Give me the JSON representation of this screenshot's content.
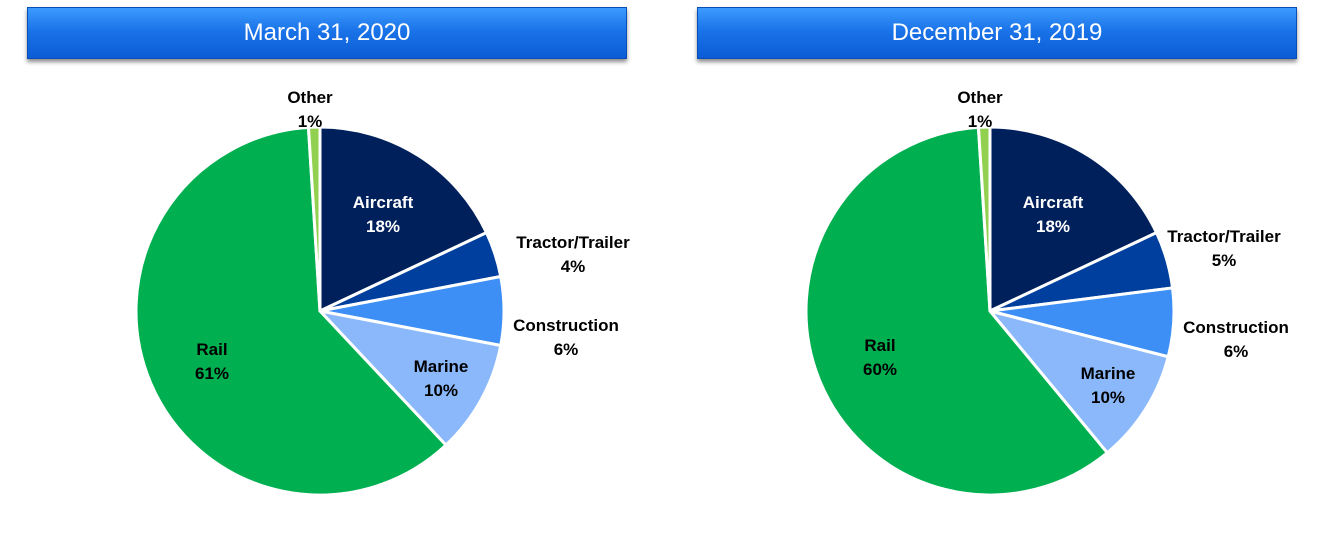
{
  "chart_data": [
    {
      "type": "pie",
      "title": "March 31, 2020",
      "slices": [
        {
          "label": "Aircraft",
          "pct_label": "18%",
          "value": 18,
          "color": "#00205b",
          "label_color": "#ffffff"
        },
        {
          "label": "Tractor/Trailer",
          "pct_label": "4%",
          "value": 4,
          "color": "#003f9e",
          "label_color": "#000000"
        },
        {
          "label": "Construction",
          "pct_label": "6%",
          "value": 6,
          "color": "#3d8ef5",
          "label_color": "#000000"
        },
        {
          "label": "Marine",
          "pct_label": "10%",
          "value": 10,
          "color": "#8ab8fb",
          "label_color": "#000000"
        },
        {
          "label": "Rail",
          "pct_label": "61%",
          "value": 61,
          "color": "#00b050",
          "label_color": "#000000"
        },
        {
          "label": "Other",
          "pct_label": "1%",
          "value": 1,
          "color": "#92d050",
          "label_color": "#000000"
        }
      ]
    },
    {
      "type": "pie",
      "title": "December 31, 2019",
      "slices": [
        {
          "label": "Aircraft",
          "pct_label": "18%",
          "value": 18,
          "color": "#00205b",
          "label_color": "#ffffff"
        },
        {
          "label": "Tractor/Trailer",
          "pct_label": "5%",
          "value": 5,
          "color": "#003f9e",
          "label_color": "#000000"
        },
        {
          "label": "Construction",
          "pct_label": "6%",
          "value": 6,
          "color": "#3d8ef5",
          "label_color": "#000000"
        },
        {
          "label": "Marine",
          "pct_label": "10%",
          "value": 10,
          "color": "#8ab8fb",
          "label_color": "#000000"
        },
        {
          "label": "Rail",
          "pct_label": "60%",
          "value": 60,
          "color": "#00b050",
          "label_color": "#000000"
        },
        {
          "label": "Other",
          "pct_label": "1%",
          "value": 1,
          "color": "#92d050",
          "label_color": "#000000"
        }
      ]
    }
  ]
}
